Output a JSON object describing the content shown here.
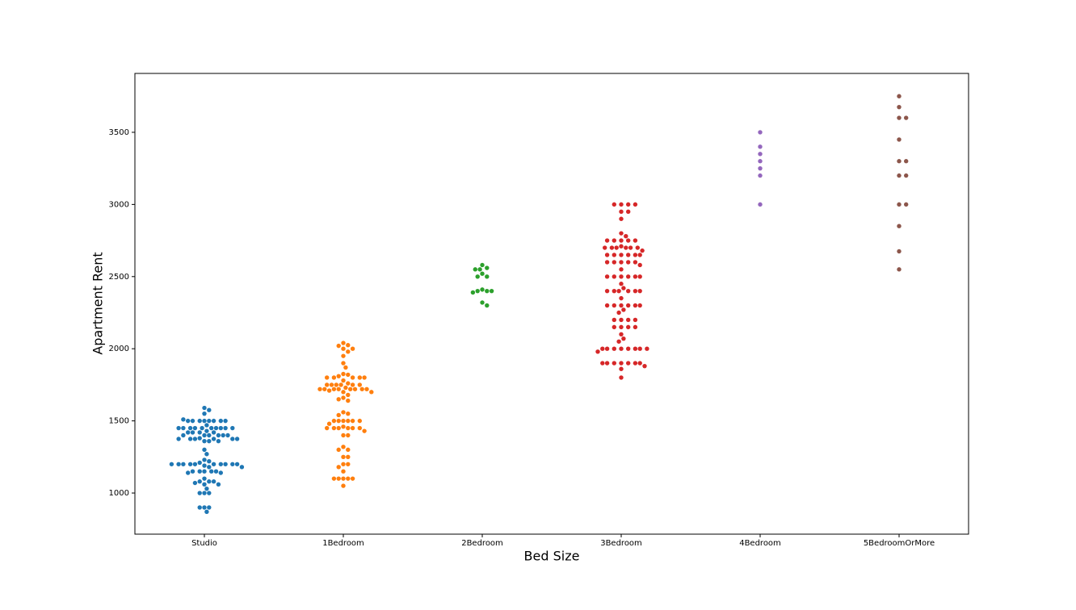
{
  "chart_data": {
    "type": "swarm",
    "xlabel": "Bed Size",
    "ylabel": "Apartment Rent",
    "categories": [
      "Studio",
      "1Bedroom",
      "2Bedroom",
      "3Bedroom",
      "4Bedroom",
      "5BedroomOrMore"
    ],
    "colors": [
      "#1f77b4",
      "#ff7f0e",
      "#2ca02c",
      "#d62728",
      "#9467bd",
      "#8c564b"
    ],
    "values": [
      [
        1590,
        1575,
        1550,
        1500,
        1500,
        1500,
        1500,
        1500,
        1500,
        1500,
        1500,
        1510,
        1470,
        1450,
        1450,
        1450,
        1450,
        1450,
        1450,
        1450,
        1450,
        1450,
        1450,
        1430,
        1420,
        1420,
        1420,
        1420,
        1400,
        1400,
        1400,
        1400,
        1400,
        1400,
        1380,
        1375,
        1375,
        1375,
        1375,
        1375,
        1375,
        1360,
        1360,
        1360,
        1300,
        1270,
        1230,
        1220,
        1210,
        1200,
        1200,
        1200,
        1200,
        1200,
        1200,
        1200,
        1200,
        1200,
        1200,
        1190,
        1180,
        1180,
        1150,
        1150,
        1150,
        1150,
        1150,
        1140,
        1140,
        1100,
        1080,
        1080,
        1080,
        1070,
        1060,
        1060,
        1030,
        1000,
        1000,
        1000,
        900,
        900,
        900,
        870
      ],
      [
        2040,
        2025,
        2020,
        2000,
        2000,
        1980,
        1950,
        1900,
        1870,
        1825,
        1820,
        1810,
        1800,
        1800,
        1800,
        1800,
        1800,
        1780,
        1760,
        1750,
        1750,
        1750,
        1750,
        1750,
        1750,
        1730,
        1720,
        1720,
        1720,
        1720,
        1720,
        1720,
        1720,
        1720,
        1710,
        1700,
        1700,
        1680,
        1660,
        1650,
        1640,
        1560,
        1550,
        1540,
        1500,
        1500,
        1500,
        1500,
        1500,
        1500,
        1480,
        1460,
        1450,
        1450,
        1450,
        1450,
        1450,
        1450,
        1430,
        1400,
        1400,
        1320,
        1300,
        1300,
        1250,
        1250,
        1200,
        1200,
        1180,
        1150,
        1100,
        1100,
        1100,
        1100,
        1100,
        1050
      ],
      [
        2580,
        2560,
        2550,
        2550,
        2520,
        2500,
        2500,
        2410,
        2400,
        2400,
        2400,
        2390,
        2320,
        2300
      ],
      [
        3000,
        3000,
        3000,
        3000,
        2950,
        2950,
        2900,
        2800,
        2780,
        2750,
        2750,
        2750,
        2750,
        2750,
        2710,
        2700,
        2700,
        2700,
        2700,
        2700,
        2700,
        2680,
        2650,
        2650,
        2650,
        2650,
        2650,
        2650,
        2600,
        2600,
        2600,
        2600,
        2600,
        2580,
        2550,
        2500,
        2500,
        2500,
        2500,
        2500,
        2500,
        2450,
        2420,
        2400,
        2400,
        2400,
        2400,
        2400,
        2400,
        2350,
        2300,
        2300,
        2300,
        2300,
        2300,
        2300,
        2270,
        2250,
        2200,
        2200,
        2200,
        2200,
        2150,
        2150,
        2150,
        2150,
        2100,
        2070,
        2050,
        2000,
        2000,
        2000,
        2000,
        2000,
        2000,
        2000,
        2000,
        1980,
        1900,
        1900,
        1900,
        1900,
        1900,
        1900,
        1900,
        1880,
        1860,
        1800
      ],
      [
        3500,
        3400,
        3350,
        3300,
        3250,
        3200,
        3000
      ],
      [
        3750,
        3675,
        3600,
        3600,
        3450,
        3300,
        3300,
        3200,
        3200,
        3000,
        3000,
        2850,
        2675,
        2550
      ]
    ],
    "ylim": [
      715,
      3908
    ],
    "yticks": [
      1000,
      1500,
      2000,
      2500,
      3000,
      3500
    ]
  }
}
